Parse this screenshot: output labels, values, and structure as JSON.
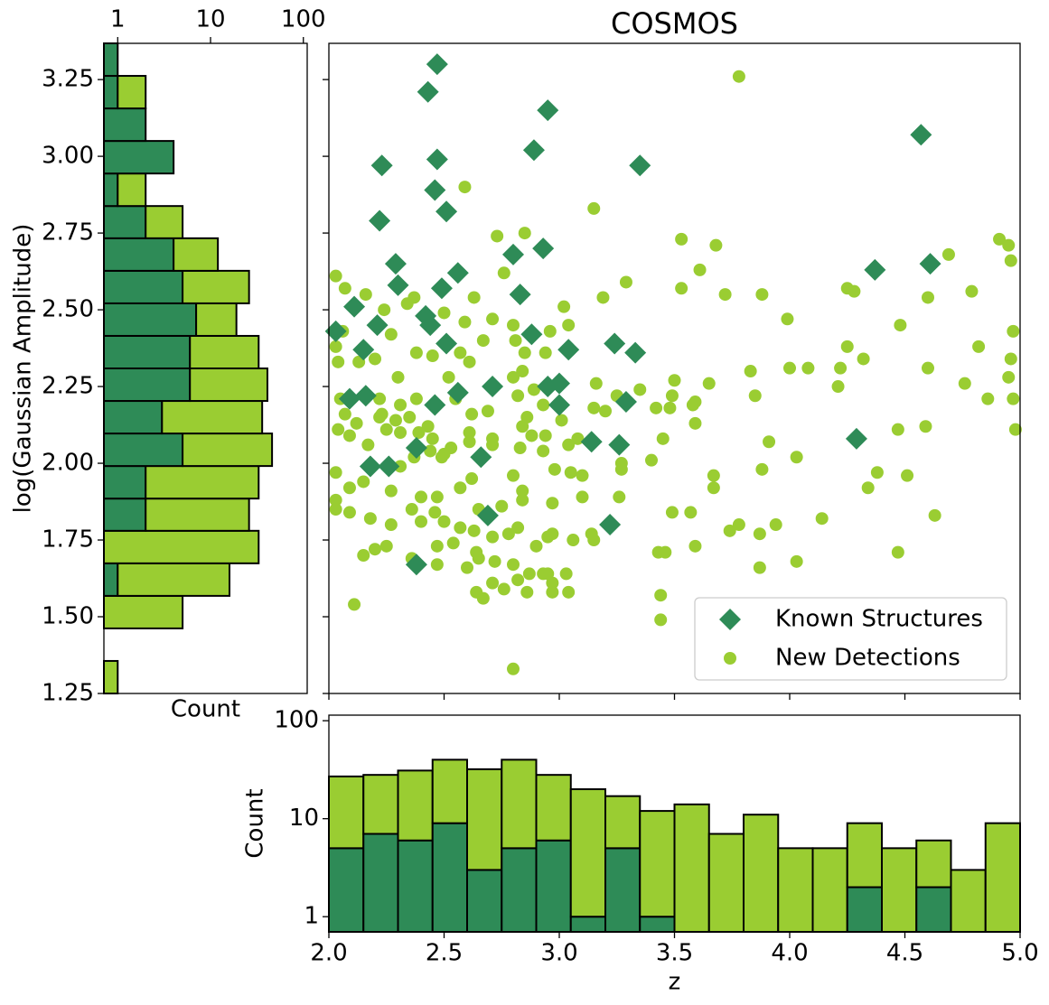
{
  "chart_data": [
    {
      "type": "scatter",
      "title": "COSMOS",
      "xlim": [
        2.0,
        5.0
      ],
      "ylim": [
        1.25,
        3.368
      ],
      "legend": "lower right",
      "series": [
        {
          "name": "Known Structures",
          "color": "#2e8b57",
          "marker": "diamond",
          "x": [
            2.47,
            2.43,
            2.95,
            2.89,
            2.23,
            2.47,
            3.35,
            4.57,
            2.46,
            2.51,
            2.22,
            2.8,
            2.93,
            2.29,
            2.56,
            2.3,
            2.49,
            2.83,
            4.61,
            4.37,
            2.11,
            2.42,
            2.44,
            2.21,
            2.03,
            2.88,
            2.51,
            3.04,
            3.24,
            3.33,
            2.15,
            2.71,
            3.0,
            2.95,
            2.56,
            2.16,
            2.09,
            2.46,
            3.29,
            3.0,
            3.14,
            3.26,
            4.29,
            2.38,
            2.66,
            2.26,
            2.18,
            2.69,
            3.22,
            2.38
          ],
          "y": [
            3.3,
            3.21,
            3.15,
            3.02,
            2.97,
            2.99,
            2.97,
            3.07,
            2.89,
            2.82,
            2.79,
            2.68,
            2.7,
            2.65,
            2.62,
            2.58,
            2.57,
            2.55,
            2.65,
            2.63,
            2.51,
            2.48,
            2.45,
            2.45,
            2.43,
            2.42,
            2.39,
            2.37,
            2.39,
            2.36,
            2.37,
            2.25,
            2.26,
            2.25,
            2.23,
            2.22,
            2.21,
            2.19,
            2.2,
            2.19,
            2.07,
            2.06,
            2.08,
            2.05,
            2.02,
            1.99,
            1.99,
            1.83,
            1.8,
            1.67
          ]
        },
        {
          "name": "New Detections",
          "color": "#9acd32",
          "marker": "circle",
          "x": [
            3.78,
            2.59,
            3.15,
            2.73,
            2.85,
            3.53,
            3.68,
            4.91,
            4.95,
            4.69,
            4.96,
            3.61,
            2.76,
            3.29,
            2.03,
            2.07,
            2.16,
            2.37,
            2.34,
            2.63,
            3.53,
            3.72,
            3.88,
            4.25,
            4.28,
            4.6,
            4.79,
            3.19,
            2.24,
            2.5,
            2.71,
            3.02,
            3.04,
            2.59,
            2.8,
            3.99,
            4.48,
            4.97,
            2.27,
            2.06,
            2.96,
            2.67,
            2.81,
            2.94,
            4.82,
            4.25,
            2.03,
            2.38,
            2.57,
            2.13,
            2.2,
            2.04,
            2.45,
            2.61,
            2.85,
            4.32,
            4.0,
            4.08,
            4.22,
            4.96,
            4.6,
            3.83,
            2.8,
            2.3,
            2.52,
            2.84,
            3.5,
            3.65,
            4.95,
            4.76,
            4.21,
            4.97,
            4.86,
            2.89,
            3.16,
            2.05,
            2.07,
            2.22,
            2.31,
            2.38,
            2.22,
            2.82,
            3.25,
            3.35,
            3.49,
            3.59,
            3.85,
            3.58,
            2.23,
            2.35,
            2.55,
            2.62,
            2.69,
            2.93,
            3.15,
            3.42,
            3.48,
            2.04,
            2.12,
            2.29,
            2.43,
            2.61,
            2.86,
            2.84,
            3.01,
            3.2,
            3.59,
            4.98,
            4.47,
            2.09,
            2.17,
            2.25,
            2.31,
            2.39,
            2.45,
            2.49,
            2.53,
            2.61,
            2.71,
            2.88,
            2.94,
            3.08,
            3.45,
            3.91,
            4.03,
            4.59,
            2.03,
            2.15,
            2.31,
            2.37,
            2.44,
            2.5,
            2.71,
            2.83,
            2.93,
            3.04,
            3.05,
            3.27,
            3.4,
            3.88,
            4.38,
            4.51,
            2.09,
            2.27,
            2.4,
            2.47,
            2.57,
            2.62,
            2.8,
            2.98,
            3.1,
            3.27,
            3.67,
            3.67,
            4.34,
            2.03,
            2.09,
            2.36,
            2.46,
            2.65,
            2.75,
            2.84,
            2.84,
            2.97,
            3.1,
            3.26,
            3.49,
            3.57,
            4.63,
            2.03,
            2.18,
            2.27,
            2.4,
            2.5,
            2.57,
            2.63,
            2.78,
            2.82,
            2.95,
            3.06,
            3.15,
            3.43,
            3.59,
            3.74,
            3.78,
            3.87,
            3.94,
            4.14,
            2.2,
            2.25,
            2.47,
            2.54,
            2.64,
            2.71,
            2.9,
            2.97,
            3.14,
            3.46,
            4.47,
            2.15,
            2.36,
            2.47,
            2.6,
            2.65,
            2.72,
            2.8,
            2.87,
            2.93,
            3.03,
            3.87,
            4.03,
            2.71,
            2.82,
            2.95,
            2.97,
            2.64,
            2.67,
            2.76,
            2.86,
            2.97,
            3.04,
            3.44,
            3.44,
            2.11,
            2.8
          ],
          "y": [
            3.26,
            2.9,
            2.83,
            2.74,
            2.75,
            2.73,
            2.71,
            2.73,
            2.71,
            2.68,
            2.66,
            2.63,
            2.62,
            2.59,
            2.61,
            2.57,
            2.55,
            2.54,
            2.52,
            2.54,
            2.57,
            2.55,
            2.55,
            2.57,
            2.56,
            2.54,
            2.56,
            2.54,
            2.5,
            2.49,
            2.47,
            2.51,
            2.45,
            2.46,
            2.45,
            2.47,
            2.45,
            2.43,
            2.42,
            2.43,
            2.43,
            2.4,
            2.4,
            2.36,
            2.38,
            2.38,
            2.38,
            2.36,
            2.36,
            2.33,
            2.34,
            2.33,
            2.35,
            2.33,
            2.36,
            2.34,
            2.31,
            2.31,
            2.31,
            2.34,
            2.31,
            2.3,
            2.28,
            2.28,
            2.28,
            2.3,
            2.27,
            2.26,
            2.28,
            2.26,
            2.25,
            2.21,
            2.21,
            2.24,
            2.26,
            2.21,
            2.16,
            2.21,
            2.19,
            2.21,
            2.15,
            2.22,
            2.22,
            2.24,
            2.22,
            2.2,
            2.22,
            2.19,
            2.16,
            2.15,
            2.21,
            2.16,
            2.17,
            2.19,
            2.18,
            2.18,
            2.18,
            2.11,
            2.13,
            2.14,
            2.12,
            2.1,
            2.15,
            2.12,
            2.14,
            2.17,
            2.13,
            2.11,
            2.11,
            2.09,
            2.06,
            2.11,
            2.1,
            2.1,
            2.08,
            2.02,
            2.05,
            2.07,
            2.08,
            2.09,
            2.09,
            2.08,
            2.08,
            2.07,
            2.02,
            2.12,
            1.97,
            1.94,
            1.99,
            2.02,
            2.04,
            2.03,
            2.06,
            2.05,
            2.04,
            2.06,
            1.97,
            2.0,
            2.01,
            1.98,
            1.97,
            1.96,
            1.92,
            1.91,
            1.89,
            1.89,
            1.92,
            1.95,
            1.96,
            1.98,
            1.96,
            1.98,
            1.96,
            1.92,
            1.92,
            1.88,
            1.84,
            1.85,
            1.84,
            1.85,
            1.86,
            1.88,
            1.91,
            1.87,
            1.89,
            1.89,
            1.84,
            1.84,
            1.83,
            1.85,
            1.82,
            1.8,
            1.81,
            1.81,
            1.79,
            1.78,
            1.77,
            1.79,
            1.76,
            1.75,
            1.75,
            1.71,
            1.73,
            1.78,
            1.8,
            1.77,
            1.8,
            1.82,
            1.72,
            1.73,
            1.73,
            1.74,
            1.71,
            1.76,
            1.73,
            1.77,
            1.77,
            1.71,
            1.71,
            1.7,
            1.69,
            1.67,
            1.66,
            1.69,
            1.68,
            1.67,
            1.64,
            1.64,
            1.64,
            1.66,
            1.68,
            1.61,
            1.62,
            1.64,
            1.61,
            1.58,
            1.56,
            1.59,
            1.58,
            1.58,
            1.58,
            1.57,
            1.49,
            1.54,
            1.33
          ]
        }
      ]
    },
    {
      "type": "histogram",
      "orientation": "vertical",
      "stacked": true,
      "ylog": true,
      "xlabel": "z",
      "ylabel": "Count",
      "bins": [
        2.0,
        2.15,
        2.3,
        2.45,
        2.6,
        2.75,
        2.9,
        3.05,
        3.2,
        3.35,
        3.5,
        3.65,
        3.8,
        3.95,
        4.1,
        4.25,
        4.4,
        4.55,
        4.7,
        4.85,
        5.0
      ],
      "series": [
        {
          "color": "#2e8b57",
          "values": [
            5,
            7,
            6,
            9,
            3,
            5,
            6,
            1,
            5,
            1,
            0,
            0,
            0,
            0,
            0,
            2,
            0,
            2,
            0,
            0
          ]
        },
        {
          "color": "#9acd32",
          "values": [
            22,
            21,
            25,
            31,
            29,
            35,
            22,
            19,
            12,
            11,
            14,
            7,
            11,
            5,
            5,
            7,
            5,
            4,
            3,
            9
          ]
        }
      ],
      "xlim": [
        2.0,
        5.0
      ],
      "xticks": [
        {
          "value": 2.0,
          "label": "2.0"
        },
        2.5,
        {
          "value": 3.0,
          "label": "3.0"
        },
        3.5,
        {
          "value": 4.0,
          "label": "4.0"
        },
        4.5,
        {
          "value": 5.0,
          "label": "5.0"
        }
      ],
      "ylim": [
        0.7,
        114
      ],
      "yticks": [
        1,
        10,
        100
      ]
    },
    {
      "type": "histogram",
      "orientation": "horizontal",
      "stacked": true,
      "xlog": true,
      "xlabel": "Count",
      "ylabel": "log(Gaussian Amplitude)",
      "bins": [
        1.25,
        1.356,
        1.462,
        1.568,
        1.674,
        1.78,
        1.885,
        1.991,
        2.097,
        2.203,
        2.309,
        2.415,
        2.521,
        2.627,
        2.733,
        2.838,
        2.944,
        3.05,
        3.156,
        3.262,
        3.368
      ],
      "series": [
        {
          "color": "#2e8b57",
          "values": [
            0,
            0,
            0,
            1,
            0,
            2,
            2,
            5,
            3,
            6,
            6,
            7,
            5,
            4,
            2,
            1,
            4,
            2,
            1,
            1
          ]
        },
        {
          "color": "#9acd32",
          "values": [
            1,
            0,
            5,
            15,
            33,
            24,
            31,
            41,
            33,
            35,
            27,
            12,
            21,
            8,
            3,
            1,
            0,
            0,
            1,
            0
          ]
        }
      ],
      "xlim": [
        0.71,
        110
      ],
      "xticks": [
        1,
        10,
        100
      ],
      "ylim": [
        1.25,
        3.368
      ],
      "yticks": [
        1.25,
        {
          "value": 1.5,
          "label": "1.50"
        },
        1.75,
        {
          "value": 2.0,
          "label": "2.00"
        },
        2.25,
        {
          "value": 2.5,
          "label": "2.50"
        },
        2.75,
        {
          "value": 3.0,
          "label": "3.00"
        },
        3.25
      ]
    }
  ]
}
